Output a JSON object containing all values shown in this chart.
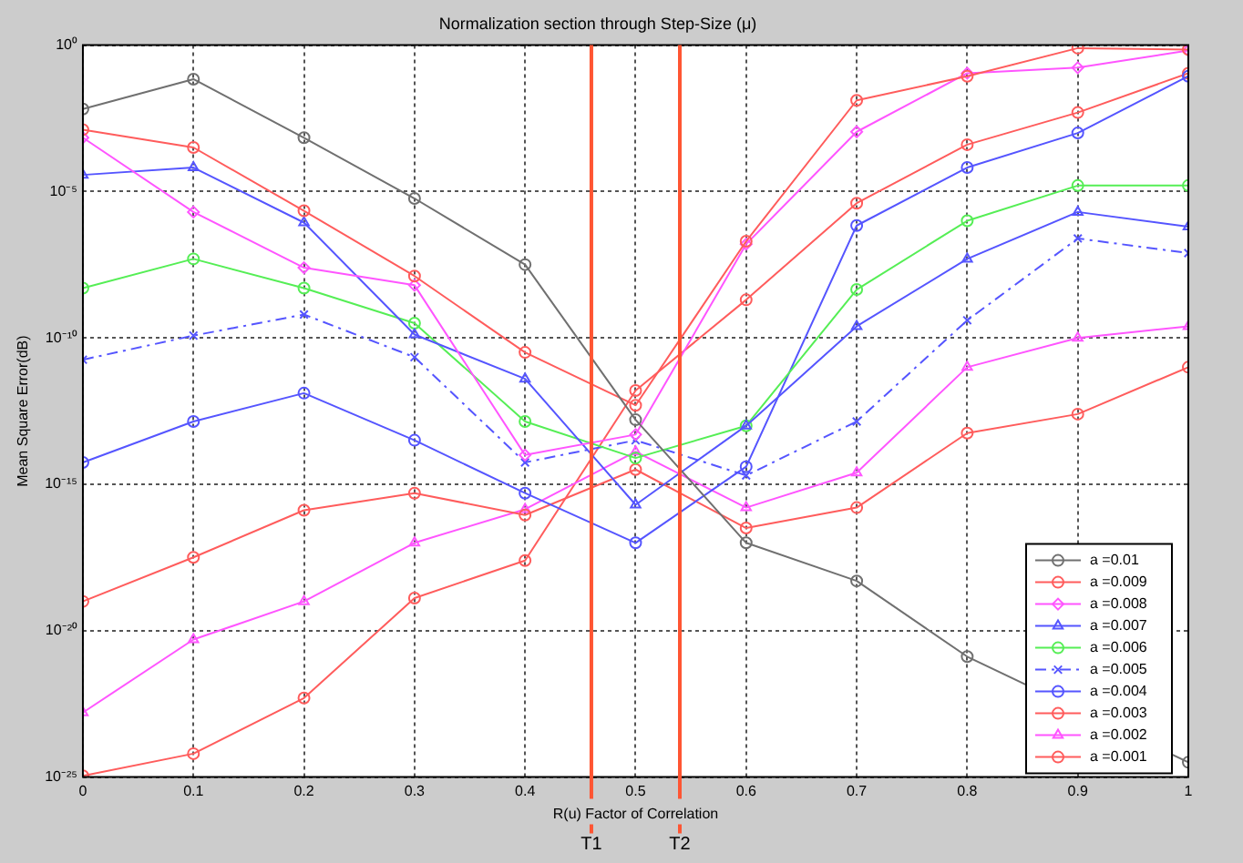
{
  "chart_data": {
    "type": "line",
    "title": "Normalization section through Step-Size (μ)",
    "xlabel": "R(u) Factor of Correlation",
    "ylabel": "Mean Square Error(dB)",
    "x": [
      0,
      0.1,
      0.2,
      0.3,
      0.4,
      0.5,
      0.6,
      0.7,
      0.8,
      0.9,
      1
    ],
    "series": [
      {
        "name": "a =0.01",
        "color": "#707070",
        "marker": "circle",
        "values": [
          0.0066,
          0.069,
          0.00069,
          5.8e-06,
          3.2e-08,
          1.6e-13,
          1e-17,
          5e-19,
          1.3e-21,
          null,
          3.2e-25
        ]
      },
      {
        "name": "a =0.009",
        "color": "#ff5c5c",
        "marker": "circle",
        "values": [
          0.0013,
          0.00032,
          2.2e-06,
          1.3e-08,
          3.2e-11,
          5e-13,
          2e-07,
          0.013,
          0.087,
          0.79,
          0.71
        ]
      },
      {
        "name": "a =0.008",
        "color": "#ff55ff",
        "marker": "diamond",
        "values": [
          0.00069,
          2e-06,
          2.5e-08,
          6.3e-09,
          1e-14,
          5e-14,
          1.6e-07,
          0.0011,
          0.11,
          0.17,
          0.66
        ]
      },
      {
        "name": "a =0.007",
        "color": "#5555ff",
        "marker": "triangle",
        "values": [
          3.7e-05,
          6.6e-05,
          8.7e-07,
          1.3e-10,
          4e-12,
          2e-16,
          1e-13,
          2.5e-10,
          5e-08,
          2e-06,
          6.3e-07
        ]
      },
      {
        "name": "a =0.006",
        "color": "#55ee55",
        "marker": "circle",
        "values": [
          5e-09,
          5e-08,
          5e-09,
          3.2e-10,
          1.4e-13,
          7.9e-15,
          1e-13,
          4.5e-09,
          1e-06,
          1.6e-05,
          1.6e-05
        ]
      },
      {
        "name": "a =0.005",
        "color": "#5555ff",
        "marker": "cross",
        "line_style": "dashed",
        "values": [
          1.8e-11,
          1.2e-10,
          6.3e-10,
          2.2e-11,
          5.6e-15,
          3.2e-14,
          2e-15,
          1.4e-13,
          4e-10,
          2.5e-07,
          7.9e-08
        ]
      },
      {
        "name": "a =0.004",
        "color": "#5555ff",
        "marker": "circle",
        "values": [
          5.6e-15,
          1.4e-13,
          1.3e-12,
          3.2e-14,
          5e-16,
          1e-17,
          4e-15,
          6.9e-07,
          6.6e-05,
          0.001,
          0.087
        ]
      },
      {
        "name": "a =0.003",
        "color": "#ff5c5c",
        "marker": "circle",
        "values": [
          1e-19,
          3.2e-18,
          1.3e-16,
          5e-16,
          8.9e-17,
          3.2e-15,
          3.2e-17,
          1.6e-16,
          5.6e-14,
          2.5e-13,
          1e-11
        ]
      },
      {
        "name": "a =0.002",
        "color": "#ff55ff",
        "marker": "triangle",
        "values": [
          1.6e-23,
          5e-21,
          1e-19,
          1e-17,
          1.4e-16,
          1.3e-14,
          1.6e-16,
          2.5e-15,
          1e-11,
          1e-10,
          2.5e-10
        ]
      },
      {
        "name": "a =0.001",
        "color": "#ff5c5c",
        "marker": "circle",
        "values": [
          1.1e-25,
          6.3e-25,
          5e-23,
          1.3e-19,
          2.5e-18,
          1.6e-12,
          2e-09,
          4e-06,
          0.0004,
          0.005,
          0.11
        ]
      }
    ],
    "xlim": [
      0,
      1
    ],
    "xticks": [
      0,
      0.1,
      0.2,
      0.3,
      0.4,
      0.5,
      0.6,
      0.7,
      0.8,
      0.9,
      1
    ],
    "log": true,
    "ylim": [
      1e-25,
      1
    ],
    "yticks": [
      {
        "value": 1e-25,
        "label": "10⁻²⁵"
      },
      {
        "value": 1e-20,
        "label": "10⁻²⁰"
      },
      {
        "value": 1e-15,
        "label": "10⁻¹⁵"
      },
      {
        "value": 1e-10,
        "label": "10⁻¹⁰"
      },
      {
        "value": 1e-05,
        "label": "10⁻⁵"
      },
      {
        "value": 1,
        "label": "10⁰"
      }
    ],
    "ref_lines": [
      {
        "axis": "x",
        "value": 0.46,
        "label": "T1",
        "color": "#ff5533"
      },
      {
        "axis": "x",
        "value": 0.54,
        "label": "T2",
        "color": "#ff5533"
      }
    ],
    "grid": true,
    "legend": "bottom right"
  }
}
